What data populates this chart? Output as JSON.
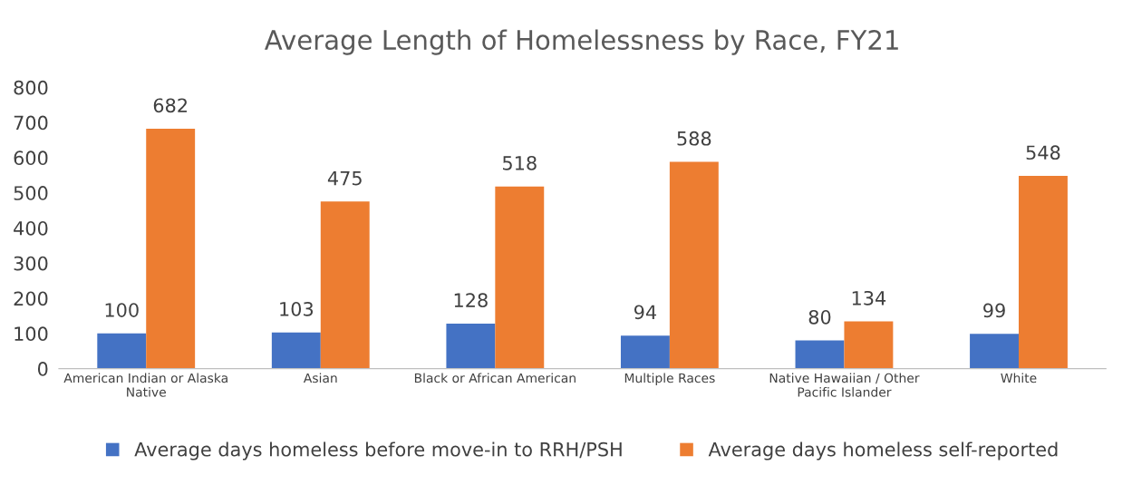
{
  "chart_data": {
    "type": "bar",
    "title": "Average Length of Homelessness by Race, FY21",
    "categories": [
      "American Indian or Alaska Native",
      "Asian",
      "Black or African American",
      "Multiple Races",
      "Native Hawaiian / Other Pacific Islander",
      "White"
    ],
    "series": [
      {
        "name": "Average days homeless before move-in to RRH/PSH",
        "color": "#4472c4",
        "values": [
          100,
          103,
          128,
          94,
          80,
          99
        ]
      },
      {
        "name": "Average days homeless self-reported",
        "color": "#ed7d31",
        "values": [
          682,
          475,
          518,
          588,
          134,
          548
        ]
      }
    ],
    "ylim": [
      0,
      800
    ],
    "yticks": [
      0,
      100,
      200,
      300,
      400,
      500,
      600,
      700,
      800
    ],
    "grid": false,
    "legend": "bottom",
    "data_labels": true
  }
}
